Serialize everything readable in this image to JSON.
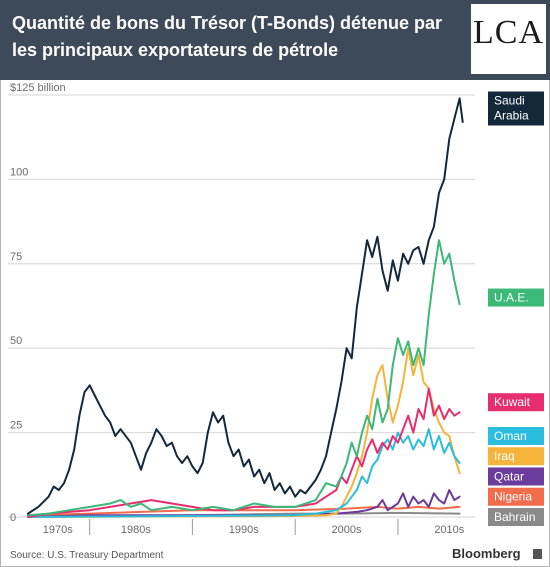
{
  "header": {
    "title": "Quantité de bons du Trésor (T-Bonds) détenue par les principaux exportateurs de pétrole",
    "logo": "LCA"
  },
  "footer": {
    "source": "Source: U.S. Treasury Department",
    "brand": "Bloomberg"
  },
  "colors": {
    "header_bg": "#3c4a5a",
    "Saudi Arabia": "#14283c",
    "U.A.E.": "#3cb879",
    "Kuwait": "#e62e6e",
    "Oman": "#2bbde0",
    "Iraq": "#f5b33a",
    "Qatar": "#6a3c9c",
    "Nigeria": "#f26b4a",
    "Bahrain": "#8a8a8a"
  },
  "chart_data": {
    "type": "line",
    "title": "",
    "xlabel": "",
    "ylabel": "",
    "xlim": [
      1974,
      2017.5
    ],
    "ylim": [
      0,
      125
    ],
    "grid": true,
    "ytick_labels": [
      "$125 billion",
      "100",
      "75",
      "50",
      "25",
      "0"
    ],
    "ytick_values": [
      125,
      100,
      75,
      50,
      25,
      0
    ],
    "xtick_labels": [
      "1970s",
      "1980s",
      "1990s",
      "2000s",
      "2010s"
    ],
    "xtick_positions": [
      1976.9,
      1984.5,
      1995,
      2005,
      2015
    ],
    "decade_separators": [
      1980,
      1990,
      2000,
      2010
    ],
    "legend_placement": "right",
    "series": [
      {
        "name": "Saudi Arabia",
        "label_lines": [
          "Saudi",
          "Arabia"
        ],
        "points": [
          [
            1974,
            1
          ],
          [
            1975,
            3
          ],
          [
            1976,
            6
          ],
          [
            1976.5,
            9
          ],
          [
            1977,
            8
          ],
          [
            1977.5,
            10
          ],
          [
            1978,
            14
          ],
          [
            1978.5,
            20
          ],
          [
            1979,
            30
          ],
          [
            1979.5,
            37
          ],
          [
            1980,
            39
          ],
          [
            1980.5,
            36
          ],
          [
            1981,
            33
          ],
          [
            1981.5,
            30
          ],
          [
            1982,
            28
          ],
          [
            1982.5,
            24
          ],
          [
            1983,
            26
          ],
          [
            1984,
            22
          ],
          [
            1984.5,
            18
          ],
          [
            1985,
            14
          ],
          [
            1985.5,
            19
          ],
          [
            1986,
            22
          ],
          [
            1986.5,
            26
          ],
          [
            1987,
            24
          ],
          [
            1987.5,
            21
          ],
          [
            1988,
            22
          ],
          [
            1988.5,
            18
          ],
          [
            1989,
            16
          ],
          [
            1989.5,
            18
          ],
          [
            1990,
            15
          ],
          [
            1990.5,
            13
          ],
          [
            1991,
            16
          ],
          [
            1991.5,
            25
          ],
          [
            1992,
            31
          ],
          [
            1992.5,
            28
          ],
          [
            1993,
            30
          ],
          [
            1993.5,
            22
          ],
          [
            1994,
            18
          ],
          [
            1994.5,
            20
          ],
          [
            1995,
            15
          ],
          [
            1995.5,
            17
          ],
          [
            1996,
            12
          ],
          [
            1996.5,
            14
          ],
          [
            1997,
            10
          ],
          [
            1997.5,
            13
          ],
          [
            1998,
            8
          ],
          [
            1998.5,
            10
          ],
          [
            1999,
            7
          ],
          [
            1999.5,
            9
          ],
          [
            2000,
            6
          ],
          [
            2000.5,
            8
          ],
          [
            2001,
            7
          ],
          [
            2001.5,
            9
          ],
          [
            2002,
            11
          ],
          [
            2002.5,
            14
          ],
          [
            2003,
            18
          ],
          [
            2003.5,
            25
          ],
          [
            2004,
            32
          ],
          [
            2004.5,
            40
          ],
          [
            2005,
            50
          ],
          [
            2005.5,
            47
          ],
          [
            2006,
            62
          ],
          [
            2006.5,
            72
          ],
          [
            2007,
            82
          ],
          [
            2007.5,
            77
          ],
          [
            2008,
            83
          ],
          [
            2008.5,
            73
          ],
          [
            2009,
            67
          ],
          [
            2009.5,
            76
          ],
          [
            2010,
            70
          ],
          [
            2010.5,
            78
          ],
          [
            2011,
            75
          ],
          [
            2011.5,
            79
          ],
          [
            2012,
            80
          ],
          [
            2012.5,
            75
          ],
          [
            2013,
            82
          ],
          [
            2013.5,
            86
          ],
          [
            2014,
            96
          ],
          [
            2014.5,
            100
          ],
          [
            2015,
            112
          ],
          [
            2015.5,
            118
          ],
          [
            2016,
            124
          ],
          [
            2016.3,
            117
          ]
        ]
      },
      {
        "name": "U.A.E.",
        "label_lines": [
          "U.A.E."
        ],
        "points": [
          [
            1974,
            0.5
          ],
          [
            1976,
            1
          ],
          [
            1978,
            2
          ],
          [
            1980,
            3
          ],
          [
            1982,
            4
          ],
          [
            1983,
            5
          ],
          [
            1984,
            3
          ],
          [
            1985,
            4
          ],
          [
            1986,
            2
          ],
          [
            1988,
            3
          ],
          [
            1990,
            2
          ],
          [
            1992,
            3
          ],
          [
            1994,
            2
          ],
          [
            1996,
            4
          ],
          [
            1998,
            3
          ],
          [
            2000,
            3
          ],
          [
            2002,
            5
          ],
          [
            2003,
            10
          ],
          [
            2004,
            9
          ],
          [
            2004.5,
            12
          ],
          [
            2005,
            16
          ],
          [
            2005.5,
            22
          ],
          [
            2006,
            18
          ],
          [
            2006.5,
            25
          ],
          [
            2007,
            30
          ],
          [
            2007.5,
            26
          ],
          [
            2008,
            35
          ],
          [
            2008.5,
            28
          ],
          [
            2009,
            32
          ],
          [
            2009.5,
            45
          ],
          [
            2010,
            53
          ],
          [
            2010.5,
            48
          ],
          [
            2011,
            52
          ],
          [
            2011.5,
            45
          ],
          [
            2012,
            50
          ],
          [
            2012.5,
            45
          ],
          [
            2013,
            60
          ],
          [
            2013.5,
            72
          ],
          [
            2014,
            82
          ],
          [
            2014.5,
            75
          ],
          [
            2015,
            78
          ],
          [
            2015.5,
            70
          ],
          [
            2016,
            63
          ]
        ]
      },
      {
        "name": "Kuwait",
        "label_lines": [
          "Kuwait"
        ],
        "points": [
          [
            1974,
            0
          ],
          [
            1976,
            1
          ],
          [
            1978,
            1.5
          ],
          [
            1980,
            2
          ],
          [
            1982,
            3
          ],
          [
            1984,
            4
          ],
          [
            1986,
            5
          ],
          [
            1988,
            4
          ],
          [
            1990,
            3
          ],
          [
            1992,
            2
          ],
          [
            1994,
            2
          ],
          [
            1996,
            3
          ],
          [
            1998,
            3
          ],
          [
            2000,
            3
          ],
          [
            2002,
            4
          ],
          [
            2003,
            6
          ],
          [
            2004,
            8
          ],
          [
            2004.5,
            12
          ],
          [
            2005,
            10
          ],
          [
            2005.5,
            14
          ],
          [
            2006,
            18
          ],
          [
            2006.5,
            15
          ],
          [
            2007,
            20
          ],
          [
            2007.5,
            23
          ],
          [
            2008,
            19
          ],
          [
            2008.5,
            22
          ],
          [
            2009,
            20
          ],
          [
            2009.5,
            24
          ],
          [
            2010,
            22
          ],
          [
            2010.5,
            26
          ],
          [
            2011,
            30
          ],
          [
            2011.5,
            25
          ],
          [
            2012,
            32
          ],
          [
            2012.5,
            29
          ],
          [
            2013,
            38
          ],
          [
            2013.5,
            30
          ],
          [
            2014,
            33
          ],
          [
            2014.5,
            29
          ],
          [
            2015,
            32
          ],
          [
            2015.5,
            30
          ],
          [
            2016,
            31
          ]
        ]
      },
      {
        "name": "Oman",
        "label_lines": [
          "Oman"
        ],
        "points": [
          [
            1974,
            0
          ],
          [
            1990,
            0.3
          ],
          [
            2000,
            0.5
          ],
          [
            2002,
            1
          ],
          [
            2004,
            2
          ],
          [
            2005,
            4
          ],
          [
            2005.5,
            6
          ],
          [
            2006,
            8
          ],
          [
            2006.5,
            12
          ],
          [
            2007,
            10
          ],
          [
            2007.5,
            15
          ],
          [
            2008,
            17
          ],
          [
            2008.5,
            21
          ],
          [
            2009,
            23
          ],
          [
            2009.5,
            20
          ],
          [
            2010,
            25
          ],
          [
            2010.5,
            22
          ],
          [
            2011,
            24
          ],
          [
            2011.5,
            20
          ],
          [
            2012,
            23
          ],
          [
            2012.5,
            21
          ],
          [
            2013,
            26
          ],
          [
            2013.5,
            20
          ],
          [
            2014,
            24
          ],
          [
            2014.5,
            19
          ],
          [
            2015,
            22
          ],
          [
            2015.5,
            18
          ],
          [
            2016,
            16
          ]
        ]
      },
      {
        "name": "Iraq",
        "label_lines": [
          "Iraq"
        ],
        "points": [
          [
            1974,
            0
          ],
          [
            2000,
            0.3
          ],
          [
            2003,
            0.5
          ],
          [
            2004,
            1
          ],
          [
            2004.5,
            3
          ],
          [
            2005,
            6
          ],
          [
            2005.5,
            9
          ],
          [
            2006,
            13
          ],
          [
            2006.5,
            18
          ],
          [
            2007,
            25
          ],
          [
            2007.5,
            35
          ],
          [
            2008,
            42
          ],
          [
            2008.5,
            45
          ],
          [
            2009,
            35
          ],
          [
            2009.5,
            28
          ],
          [
            2010,
            33
          ],
          [
            2010.5,
            40
          ],
          [
            2011,
            50
          ],
          [
            2011.5,
            42
          ],
          [
            2012,
            48
          ],
          [
            2012.5,
            40
          ],
          [
            2013,
            38
          ],
          [
            2013.5,
            32
          ],
          [
            2014,
            28
          ],
          [
            2014.5,
            25
          ],
          [
            2015,
            24
          ],
          [
            2015.5,
            18
          ],
          [
            2016,
            13
          ]
        ]
      },
      {
        "name": "Qatar",
        "label_lines": [
          "Qatar"
        ],
        "points": [
          [
            1974,
            0
          ],
          [
            1980,
            0.5
          ],
          [
            1990,
            0.5
          ],
          [
            2000,
            0.5
          ],
          [
            2004,
            1
          ],
          [
            2006,
            1.5
          ],
          [
            2007,
            2
          ],
          [
            2008,
            3
          ],
          [
            2008.5,
            5
          ],
          [
            2009,
            2
          ],
          [
            2010,
            4
          ],
          [
            2010.5,
            7
          ],
          [
            2011,
            3
          ],
          [
            2011.5,
            6
          ],
          [
            2012,
            4
          ],
          [
            2012.5,
            5
          ],
          [
            2013,
            3
          ],
          [
            2013.5,
            7
          ],
          [
            2014,
            5
          ],
          [
            2014.5,
            4
          ],
          [
            2015,
            8
          ],
          [
            2015.5,
            5
          ],
          [
            2016,
            6
          ]
        ]
      },
      {
        "name": "Nigeria",
        "label_lines": [
          "Nigeria"
        ],
        "points": [
          [
            1974,
            0.5
          ],
          [
            1980,
            1
          ],
          [
            1985,
            1.5
          ],
          [
            1990,
            2
          ],
          [
            1995,
            2
          ],
          [
            2000,
            2
          ],
          [
            2005,
            2.5
          ],
          [
            2008,
            3
          ],
          [
            2010,
            2.5
          ],
          [
            2012,
            3
          ],
          [
            2014,
            2.5
          ],
          [
            2016,
            3
          ]
        ]
      },
      {
        "name": "Bahrain",
        "label_lines": [
          "Bahrain"
        ],
        "points": [
          [
            1974,
            0.2
          ],
          [
            1990,
            0.5
          ],
          [
            2000,
            1
          ],
          [
            2005,
            1
          ],
          [
            2010,
            1.2
          ],
          [
            2016,
            1
          ]
        ]
      }
    ],
    "legend_label_values": {
      "Saudi Arabia": 121,
      "U.A.E.": 65,
      "Kuwait": 34,
      "Oman": 24,
      "Iraq": 18,
      "Qatar": 12,
      "Nigeria": 6,
      "Bahrain": 0
    }
  }
}
